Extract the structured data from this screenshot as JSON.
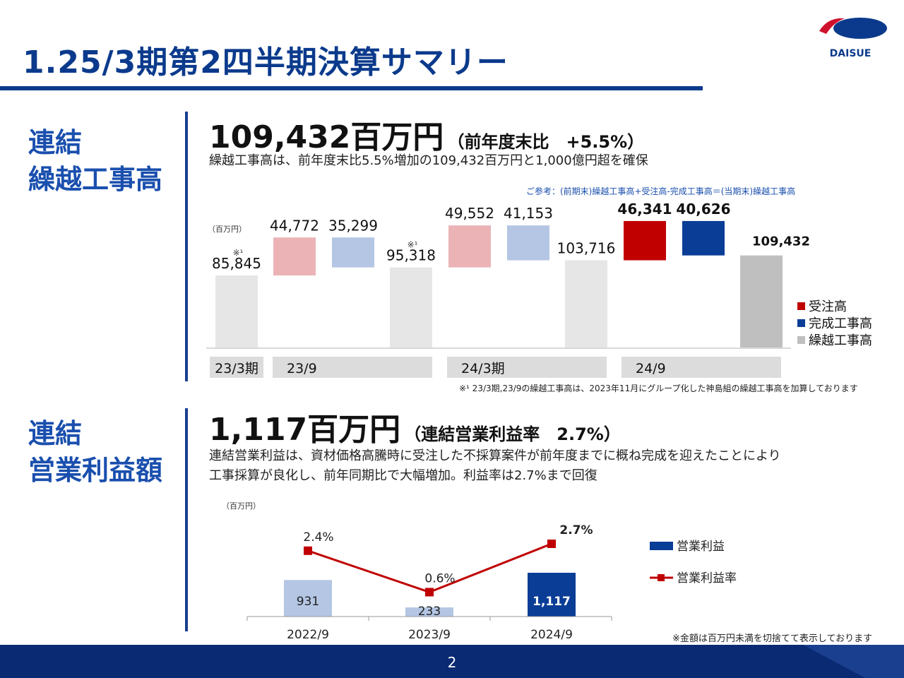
{
  "header": {
    "title": "1.25/3期第2四半期決算サマリー",
    "logo_text": "DAISUE"
  },
  "section1": {
    "label_line1": "連結",
    "label_line2": "繰越工事高",
    "headline_value": "109,432百万円",
    "headline_note": "（前年度末比　+5.5%）",
    "description": "繰越工事高は、前年度末比5.5%増加の109,432百万円と1,000億円超を確保",
    "reference_note": "ご参考：(前期末)繰越工事高+受注高-完成工事高＝(当期末)繰越工事高",
    "footnote": "※¹ 23/3期,23/9の繰越工事高は、2023年11月にグループ化した神島組の繰越工事高を加算しております"
  },
  "section2": {
    "label_line1": "連結",
    "label_line2": "営業利益額",
    "headline_value": "1,117百万円",
    "headline_note": "（連結営業利益率　2.7%）",
    "description_line1": "連結営業利益は、資材価格高騰時に受注した不採算案件が前年度までに概ね完成を迎えたことにより",
    "description_line2": "工事採算が良化し、前年同期比で大幅増加。利益率は2.7%まで回復"
  },
  "footer": {
    "note": "※金額は百万円未満を切捨てて表示しております",
    "page_number": "2"
  },
  "colors": {
    "brand_blue": "#0b3a8c",
    "order_dark": "#c00000",
    "order_light": "#ebb3b6",
    "completed_dark": "#0a3d96",
    "completed_light": "#b4c6e4",
    "backlog_light": "#e6e6e6",
    "backlog_dark": "#bfbfbf",
    "margin_line": "#c00000"
  },
  "chart_data": [
    {
      "type": "bar",
      "subtype": "waterfall",
      "unit_label": "（百万円）",
      "legend_position": "right",
      "legend": [
        "受注高",
        "完成工事高",
        "繰越工事高"
      ],
      "period_labels": [
        "23/3期",
        "23/9",
        "24/3期",
        "24/9"
      ],
      "annotation_mark": "※¹",
      "bars": [
        {
          "period": "23/3期",
          "kind": "backlog",
          "value": 85845,
          "label": "85,845",
          "note": "※¹"
        },
        {
          "period": "23/9",
          "kind": "order",
          "value": 44772,
          "label": "44,772"
        },
        {
          "period": "23/9",
          "kind": "completed",
          "value": 35299,
          "label": "35,299"
        },
        {
          "period": "23/9",
          "kind": "backlog",
          "value": 95318,
          "label": "95,318",
          "note": "※¹"
        },
        {
          "period": "24/3期",
          "kind": "order",
          "value": 49552,
          "label": "49,552"
        },
        {
          "period": "24/3期",
          "kind": "completed",
          "value": 41153,
          "label": "41,153"
        },
        {
          "period": "24/3期",
          "kind": "backlog",
          "value": 103716,
          "label": "103,716"
        },
        {
          "period": "24/9",
          "kind": "order",
          "value": 46341,
          "label": "46,341",
          "highlight": true
        },
        {
          "period": "24/9",
          "kind": "completed",
          "value": 40626,
          "label": "40,626",
          "highlight": true
        },
        {
          "period": "24/9",
          "kind": "backlog",
          "value": 109432,
          "label": "109,432",
          "highlight": true
        }
      ]
    },
    {
      "type": "bar",
      "combo": "bar+line",
      "unit_label": "（百万円）",
      "categories": [
        "2022/9",
        "2023/9",
        "2024/9"
      ],
      "series": [
        {
          "name": "営業利益",
          "type": "bar",
          "values": [
            931,
            233,
            1117
          ],
          "labels": [
            "931",
            "233",
            "1,117"
          ]
        },
        {
          "name": "営業利益率",
          "type": "line",
          "values": [
            2.4,
            0.6,
            2.7
          ],
          "labels": [
            "2.4%",
            "0.6%",
            "2.7%"
          ]
        }
      ],
      "legend_position": "right"
    }
  ]
}
